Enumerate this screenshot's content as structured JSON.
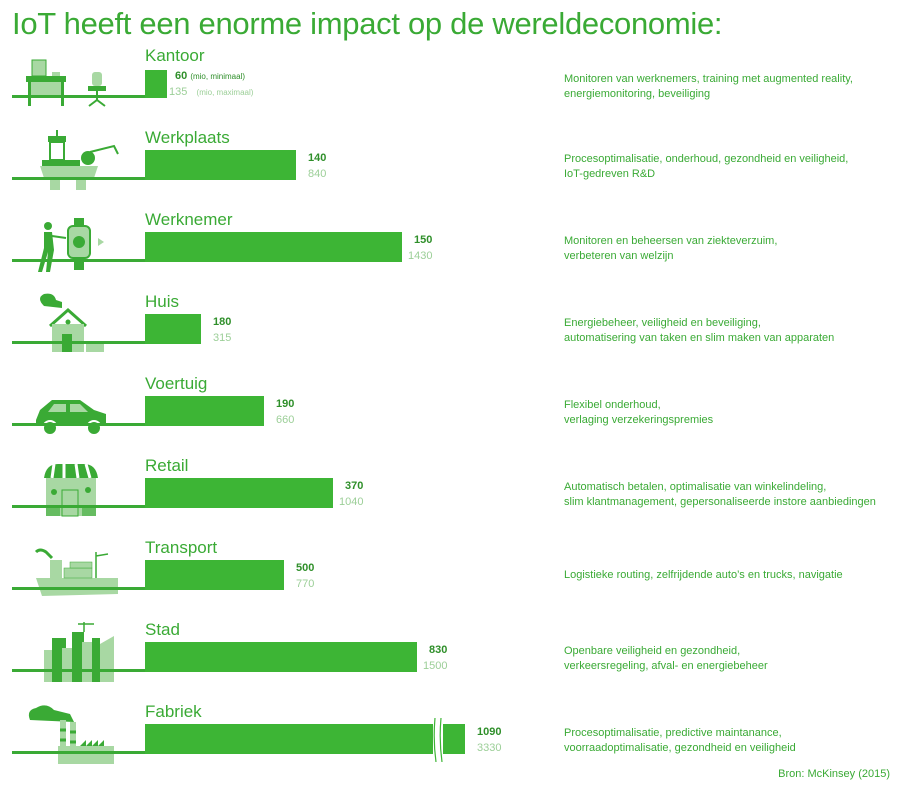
{
  "title": "IoT heeft een enorme impact op de wereldeconomie:",
  "source": "Bron: McKinsey (2015)",
  "colors": {
    "primary": "#3aaa35",
    "bar": "#3db535",
    "max_value": "#9ccf98",
    "icon_light": "#a8d8a3"
  },
  "chart_data": {
    "type": "bar",
    "title": "IoT heeft een enorme impact op de wereldeconomie:",
    "unit_min_label": "(mio, minimaal)",
    "unit_max_label": "(mio, maximaal)",
    "categories": [
      "Kantoor",
      "Werkplaats",
      "Werknemer",
      "Huis",
      "Voertuig",
      "Retail",
      "Transport",
      "Stad",
      "Fabriek"
    ],
    "series": [
      {
        "name": "minimaal",
        "values": [
          60,
          140,
          150,
          180,
          190,
          370,
          500,
          830,
          1090
        ]
      },
      {
        "name": "maximaal",
        "values": [
          135,
          840,
          1430,
          315,
          660,
          1040,
          770,
          1500,
          3330
        ]
      }
    ],
    "rows": [
      {
        "category": "Kantoor",
        "icon": "office-desk-icon",
        "min": "60",
        "max": "135",
        "desc1": "Monitoren van werknemers, training met augmented reality,",
        "desc2": "energiemonitoring, beveiliging"
      },
      {
        "category": "Werkplaats",
        "icon": "oil-rig-icon",
        "min": "140",
        "max": "840",
        "desc1": "Procesoptimalisatie, onderhoud, gezondheid en veiligheid,",
        "desc2": "IoT-gedreven R&D"
      },
      {
        "category": "Werknemer",
        "icon": "smartwatch-worker-icon",
        "min": "150",
        "max": "1430",
        "desc1": "Monitoren en beheersen van ziekteverzuim,",
        "desc2": "verbeteren van welzijn"
      },
      {
        "category": "Huis",
        "icon": "house-icon",
        "min": "180",
        "max": "315",
        "desc1": "Energiebeheer, veiligheid en beveiliging,",
        "desc2": "automatisering van taken en slim maken van apparaten"
      },
      {
        "category": "Voertuig",
        "icon": "car-icon",
        "min": "190",
        "max": "660",
        "desc1": "Flexibel onderhoud,",
        "desc2": "verlaging verzekeringspremies"
      },
      {
        "category": "Retail",
        "icon": "shop-icon",
        "min": "370",
        "max": "1040",
        "desc1": "Automatisch betalen, optimalisatie van winkelindeling,",
        "desc2": "slim klantmanagement, gepersonaliseerde instore aanbiedingen"
      },
      {
        "category": "Transport",
        "icon": "cargo-ship-icon",
        "min": "500",
        "max": "770",
        "desc1": "Logistieke routing, zelfrijdende auto’s en trucks, navigatie",
        "desc2": ""
      },
      {
        "category": "Stad",
        "icon": "city-icon",
        "min": "830",
        "max": "1500",
        "desc1": "Openbare veiligheid en gezondheid,",
        "desc2": "verkeersregeling, afval- en energiebeheer"
      },
      {
        "category": "Fabriek",
        "icon": "factory-icon",
        "min": "1090",
        "max": "3330",
        "desc1": "Procesoptimalisatie, predictive maintanance,",
        "desc2": "voorraadoptimalisatie, gezondheid en veiligheid"
      }
    ]
  }
}
